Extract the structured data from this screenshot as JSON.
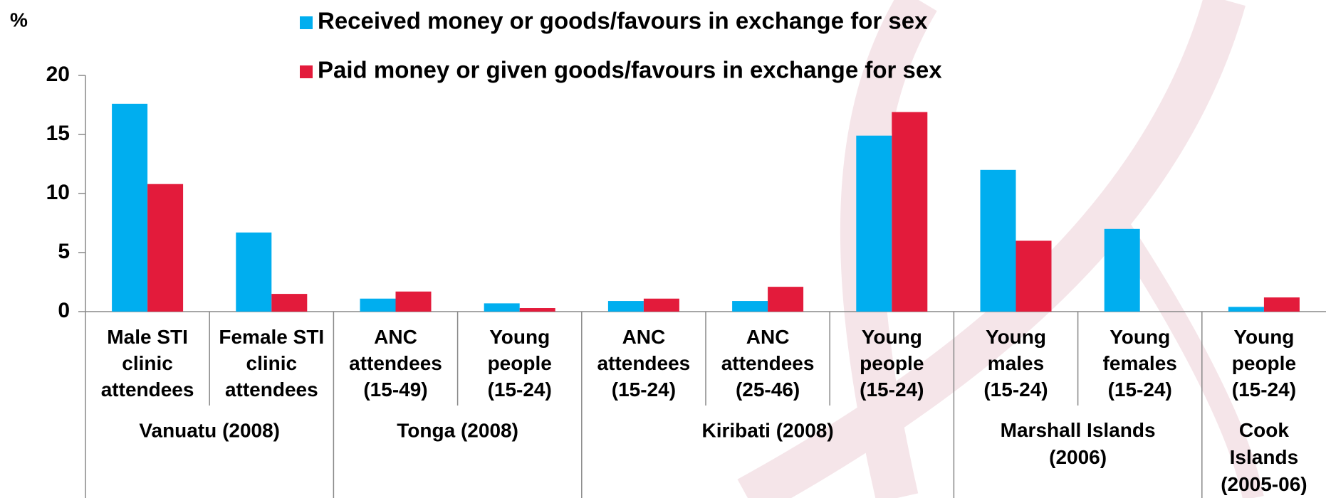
{
  "chart_data": {
    "type": "bar",
    "y_label": "%",
    "groups": [
      {
        "name": "Vanuatu (2008)",
        "categories": [
          "Male STI\nclinic\nattendees",
          "Female STI\nclinic\nattendees"
        ]
      },
      {
        "name": "Tonga (2008)",
        "categories": [
          "ANC\nattendees\n(15-49)",
          "Young\npeople\n(15-24)"
        ]
      },
      {
        "name": "Kiribati (2008)",
        "categories": [
          "ANC\nattendees\n(15-24)",
          "ANC\nattendees\n(25-46)",
          "Young\npeople\n(15-24)"
        ]
      },
      {
        "name": "Marshall Islands\n(2006)",
        "categories": [
          "Young\nmales\n(15-24)",
          "Young\nfemales\n(15-24)"
        ]
      },
      {
        "name": "Cook\nIslands\n(2005-06)",
        "categories": [
          "Young\npeople\n(15-24)"
        ]
      }
    ],
    "series": [
      {
        "name": "Received money  or goods/favours in exchange for sex",
        "color": "#00aeef",
        "values": [
          17.6,
          6.7,
          1.1,
          0.7,
          0.9,
          0.9,
          14.9,
          12.0,
          7.0,
          0.4
        ]
      },
      {
        "name": "Paid  money  or given goods/favours in exchange  for sex",
        "color": "#e31b3b",
        "values": [
          10.8,
          1.5,
          1.7,
          0.3,
          1.1,
          2.1,
          16.9,
          6.0,
          null,
          1.2
        ]
      }
    ],
    "ylim": [
      0,
      20
    ],
    "yticks": [
      0,
      5,
      10,
      15,
      20
    ]
  }
}
